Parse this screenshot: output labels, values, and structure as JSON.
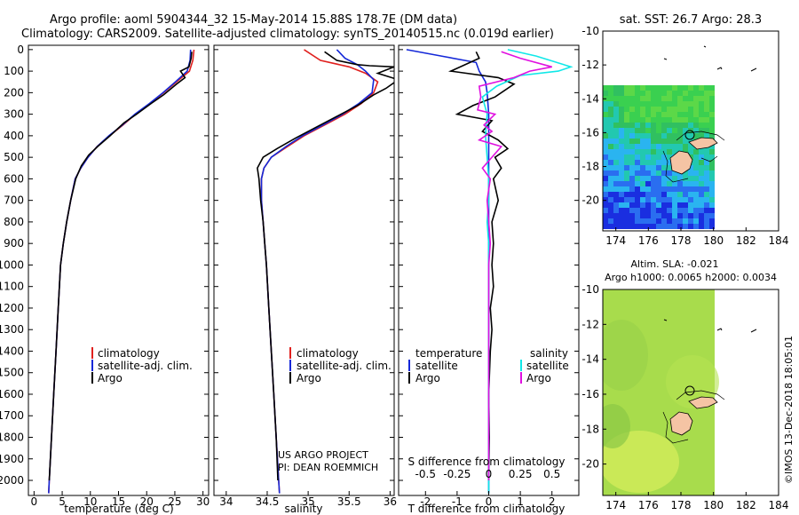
{
  "header": {
    "title1": "Argo profile: aoml 5904344_32 15-May-2014 15.88S 178.7E (DM data)",
    "title2": "Climatology: CARS2009. Satellite-adjusted climatology: synTS_20140515.nc (0.019d earlier)",
    "sst_title": "sat. SST: 26.7 Argo: 28.3",
    "sla_title1": "Altim. SLA: -0.021",
    "sla_title2": "Argo h1000: 0.0065 h2000: 0.0034",
    "credit1": "US ARGO PROJECT",
    "credit2": "PI: DEAN ROEMMICH",
    "stamp": "©IMOS 13-Dec-2018 18:05:01"
  },
  "colors": {
    "climatology": "#e0201e",
    "satellite_adj": "#1428d8",
    "argo": "#000000",
    "satellite_s": "#10e8e8",
    "argo_s": "#e010e0",
    "land": "#f5c4a4"
  },
  "chart_data": [
    {
      "type": "line",
      "xlabel": "temperature (deg C)",
      "ylabel": "",
      "xlim": [
        -1,
        31
      ],
      "ylim": [
        2070,
        0
      ],
      "xticks": [
        "0",
        "5",
        "10",
        "15",
        "20",
        "25",
        "30"
      ],
      "yticks": [
        "0",
        "100",
        "200",
        "300",
        "400",
        "500",
        "600",
        "700",
        "800",
        "900",
        "1000",
        "1100",
        "1200",
        "1300",
        "1400",
        "1500",
        "1600",
        "1700",
        "1800",
        "1900",
        "2000"
      ],
      "legend": [
        "climatology",
        "satellite-adj. clim.",
        "Argo"
      ],
      "series": [
        {
          "name": "climatology",
          "points": [
            [
              28.4,
              0
            ],
            [
              28.2,
              50
            ],
            [
              27.6,
              100
            ],
            [
              25.3,
              150
            ],
            [
              23.0,
              200
            ],
            [
              20.6,
              250
            ],
            [
              18.0,
              300
            ],
            [
              15.8,
              350
            ],
            [
              13.4,
              400
            ],
            [
              11.2,
              450
            ],
            [
              9.6,
              500
            ],
            [
              8.3,
              550
            ],
            [
              7.3,
              600
            ],
            [
              6.5,
              700
            ],
            [
              5.8,
              800
            ],
            [
              5.2,
              900
            ],
            [
              4.7,
              1000
            ],
            [
              4.3,
              1200
            ],
            [
              3.9,
              1400
            ],
            [
              3.5,
              1600
            ],
            [
              3.1,
              1800
            ],
            [
              2.7,
              2000
            ],
            [
              2.6,
              2060
            ]
          ]
        },
        {
          "name": "satellite-adj. clim.",
          "points": [
            [
              27.8,
              0
            ],
            [
              27.7,
              50
            ],
            [
              27.2,
              100
            ],
            [
              25.1,
              150
            ],
            [
              22.9,
              200
            ],
            [
              20.5,
              250
            ],
            [
              17.9,
              300
            ],
            [
              15.7,
              350
            ],
            [
              13.3,
              400
            ],
            [
              11.2,
              450
            ],
            [
              9.6,
              500
            ],
            [
              8.3,
              550
            ],
            [
              7.3,
              600
            ],
            [
              6.5,
              700
            ],
            [
              5.8,
              800
            ],
            [
              5.2,
              900
            ],
            [
              4.7,
              1000
            ],
            [
              4.3,
              1200
            ],
            [
              3.9,
              1400
            ],
            [
              3.5,
              1600
            ],
            [
              3.1,
              1800
            ],
            [
              2.7,
              2000
            ],
            [
              2.6,
              2060
            ]
          ]
        },
        {
          "name": "Argo",
          "points": [
            [
              28.0,
              10
            ],
            [
              27.9,
              40
            ],
            [
              27.5,
              80
            ],
            [
              26.0,
              100
            ],
            [
              26.8,
              130
            ],
            [
              25.3,
              160
            ],
            [
              23.0,
              210
            ],
            [
              20.8,
              250
            ],
            [
              18.2,
              300
            ],
            [
              16.0,
              340
            ],
            [
              13.5,
              400
            ],
            [
              11.3,
              450
            ],
            [
              9.7,
              490
            ],
            [
              8.4,
              540
            ],
            [
              7.4,
              600
            ],
            [
              6.5,
              700
            ],
            [
              5.8,
              800
            ],
            [
              5.2,
              900
            ],
            [
              4.7,
              1000
            ],
            [
              4.3,
              1200
            ],
            [
              3.9,
              1400
            ],
            [
              3.5,
              1600
            ],
            [
              3.1,
              1800
            ],
            [
              2.7,
              2000
            ]
          ]
        }
      ]
    },
    {
      "type": "line",
      "xlabel": "salinity",
      "ylabel": "",
      "xlim": [
        33.85,
        36.05
      ],
      "ylim": [
        2070,
        0
      ],
      "xticks": [
        "34",
        "34.5",
        "35",
        "35.5",
        "36"
      ],
      "legend": [
        "climatology",
        "satellite-adj. clim.",
        "Argo"
      ],
      "series": [
        {
          "name": "climatology",
          "points": [
            [
              34.95,
              0
            ],
            [
              35.15,
              50
            ],
            [
              35.5,
              80
            ],
            [
              35.7,
              110
            ],
            [
              35.85,
              150
            ],
            [
              35.8,
              200
            ],
            [
              35.65,
              250
            ],
            [
              35.45,
              300
            ],
            [
              35.2,
              350
            ],
            [
              34.95,
              400
            ],
            [
              34.75,
              450
            ],
            [
              34.55,
              500
            ],
            [
              34.46,
              550
            ],
            [
              34.43,
              600
            ],
            [
              34.43,
              700
            ],
            [
              34.45,
              800
            ],
            [
              34.47,
              900
            ],
            [
              34.49,
              1000
            ],
            [
              34.52,
              1200
            ],
            [
              34.55,
              1400
            ],
            [
              34.58,
              1600
            ],
            [
              34.61,
              1800
            ],
            [
              34.64,
              2000
            ],
            [
              34.65,
              2060
            ]
          ]
        },
        {
          "name": "satellite-adj. clim.",
          "points": [
            [
              35.35,
              0
            ],
            [
              35.45,
              40
            ],
            [
              35.6,
              70
            ],
            [
              35.7,
              100
            ],
            [
              35.8,
              140
            ],
            [
              35.78,
              200
            ],
            [
              35.62,
              250
            ],
            [
              35.42,
              300
            ],
            [
              35.18,
              350
            ],
            [
              34.93,
              400
            ],
            [
              34.73,
              450
            ],
            [
              34.55,
              500
            ],
            [
              34.46,
              550
            ],
            [
              34.43,
              600
            ],
            [
              34.43,
              700
            ],
            [
              34.45,
              800
            ],
            [
              34.47,
              900
            ],
            [
              34.49,
              1000
            ],
            [
              34.52,
              1200
            ],
            [
              34.55,
              1400
            ],
            [
              34.58,
              1600
            ],
            [
              34.61,
              1800
            ],
            [
              34.64,
              2000
            ],
            [
              34.65,
              2060
            ]
          ]
        },
        {
          "name": "Argo",
          "points": [
            [
              35.2,
              10
            ],
            [
              35.35,
              50
            ],
            [
              35.6,
              70
            ],
            [
              35.75,
              75
            ],
            [
              36.05,
              80
            ],
            [
              35.85,
              110
            ],
            [
              36.1,
              140
            ],
            [
              35.95,
              180
            ],
            [
              35.8,
              210
            ],
            [
              35.6,
              260
            ],
            [
              35.35,
              310
            ],
            [
              35.1,
              360
            ],
            [
              34.85,
              410
            ],
            [
              34.62,
              460
            ],
            [
              34.45,
              500
            ],
            [
              34.38,
              550
            ],
            [
              34.4,
              600
            ],
            [
              34.42,
              700
            ],
            [
              34.45,
              800
            ],
            [
              34.47,
              900
            ],
            [
              34.49,
              1000
            ],
            [
              34.52,
              1200
            ],
            [
              34.55,
              1400
            ],
            [
              34.58,
              1600
            ],
            [
              34.61,
              1800
            ],
            [
              34.63,
              2000
            ]
          ]
        }
      ]
    },
    {
      "type": "line",
      "xlabel": "T difference from climatology",
      "top_axis_label": "S difference from climatology",
      "xlim": [
        -2.85,
        2.85
      ],
      "xticks": [
        "-2",
        "-1",
        "0",
        "1",
        "2"
      ],
      "top_ticks": [
        "-0.5",
        "-0.25",
        "0",
        "0.25",
        "0.5"
      ],
      "legend_titles": [
        "temperature",
        "salinity"
      ],
      "legend_left": [
        "satellite",
        "Argo"
      ],
      "legend_right": [
        "satellite",
        "Argo"
      ],
      "series": [
        {
          "name": "T satellite",
          "points": [
            [
              -2.6,
              0
            ],
            [
              -1.5,
              30
            ],
            [
              -0.4,
              60
            ],
            [
              -0.3,
              100
            ],
            [
              -0.1,
              150
            ],
            [
              -0.05,
              200
            ],
            [
              0,
              300
            ],
            [
              0,
              400
            ],
            [
              0,
              500
            ],
            [
              0,
              700
            ],
            [
              0,
              1000
            ],
            [
              0,
              1500
            ],
            [
              0,
              2060
            ]
          ]
        },
        {
          "name": "T Argo",
          "points": [
            [
              -0.4,
              10
            ],
            [
              -0.3,
              40
            ],
            [
              -1.2,
              100
            ],
            [
              0.3,
              130
            ],
            [
              0.8,
              160
            ],
            [
              0.2,
              220
            ],
            [
              -0.5,
              260
            ],
            [
              -1.0,
              300
            ],
            [
              0.1,
              330
            ],
            [
              -0.2,
              380
            ],
            [
              0.3,
              420
            ],
            [
              0.6,
              460
            ],
            [
              0.2,
              500
            ],
            [
              0.4,
              550
            ],
            [
              0.15,
              600
            ],
            [
              0.3,
              700
            ],
            [
              0.1,
              800
            ],
            [
              0.15,
              900
            ],
            [
              0.1,
              1000
            ],
            [
              0.15,
              1100
            ],
            [
              0.05,
              1200
            ],
            [
              0.1,
              1300
            ],
            [
              0.05,
              1400
            ],
            [
              0.0,
              1600
            ],
            [
              0.02,
              1800
            ],
            [
              0.0,
              2000
            ]
          ]
        },
        {
          "name": "S satellite",
          "points": [
            [
              0.6,
              0
            ],
            [
              1.5,
              30
            ],
            [
              2.6,
              80
            ],
            [
              2.2,
              100
            ],
            [
              1.0,
              120
            ],
            [
              0.25,
              170
            ],
            [
              -0.2,
              220
            ],
            [
              -0.05,
              300
            ],
            [
              -0.1,
              400
            ],
            [
              -0.05,
              500
            ],
            [
              0,
              600
            ],
            [
              0,
              700
            ],
            [
              -0.05,
              800
            ],
            [
              0,
              900
            ],
            [
              0,
              1000
            ],
            [
              0,
              1500
            ],
            [
              0,
              2060
            ]
          ]
        },
        {
          "name": "S Argo",
          "points": [
            [
              0.4,
              10
            ],
            [
              1.0,
              40
            ],
            [
              2.0,
              80
            ],
            [
              1.3,
              100
            ],
            [
              0.8,
              130
            ],
            [
              -0.3,
              170
            ],
            [
              -0.25,
              220
            ],
            [
              -0.35,
              280
            ],
            [
              0.2,
              300
            ],
            [
              -0.15,
              350
            ],
            [
              0.1,
              380
            ],
            [
              -0.3,
              420
            ],
            [
              0.4,
              450
            ],
            [
              0.1,
              500
            ],
            [
              -0.2,
              550
            ],
            [
              0.05,
              600
            ],
            [
              -0.05,
              700
            ],
            [
              0.0,
              800
            ],
            [
              0.05,
              900
            ],
            [
              0,
              1000
            ],
            [
              0,
              1500
            ],
            [
              0,
              2000
            ]
          ]
        }
      ]
    },
    {
      "type": "heatmap",
      "title": "sat. SST: 26.7 Argo: 28.3",
      "xlim": [
        173.2,
        184
      ],
      "ylim": [
        -21.8,
        -10
      ],
      "xticks": [
        "174",
        "176",
        "178",
        "180",
        "182",
        "184"
      ],
      "yticks": [
        "-10",
        "-12",
        "-14",
        "-16",
        "-18",
        "-20"
      ],
      "profile_location": [
        178.7,
        -15.88
      ]
    },
    {
      "type": "heatmap",
      "title": "Altim. SLA: -0.021",
      "xlim": [
        173.2,
        184
      ],
      "ylim": [
        -21.8,
        -10
      ],
      "xticks": [
        "174",
        "176",
        "178",
        "180",
        "182",
        "184"
      ],
      "yticks": [
        "-10",
        "-12",
        "-14",
        "-16",
        "-18",
        "-20"
      ],
      "profile_location": [
        178.7,
        -15.88
      ]
    }
  ]
}
